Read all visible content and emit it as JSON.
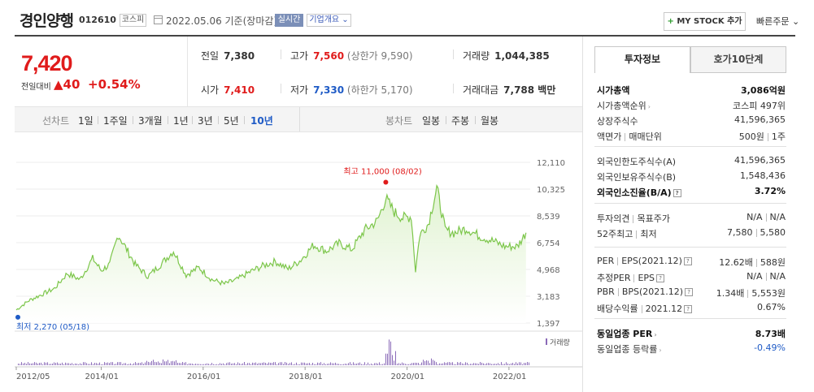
{
  "header": {
    "company_name": "경인양행",
    "code": "012610",
    "market": "코스피",
    "date_text": "2022.05.06  기준(장마감)",
    "realtime_label": "실시간",
    "corp_label": "기업개요 ⌄",
    "mystock_label": "MY STOCK 추가",
    "quick_order": "빠른주문 ⌄"
  },
  "price": {
    "current": "7,420",
    "diff_label": "전일대비",
    "diff": "▲40",
    "pct": "+0.54%"
  },
  "quotes": {
    "prev_close_label": "전일",
    "prev_close": "7,380",
    "high_label": "고가",
    "high": "7,560",
    "upper_limit": "(상한가 9,590)",
    "volume_label": "거래량",
    "volume": "1,044,385",
    "open_label": "시가",
    "open": "7,410",
    "low_label": "저가",
    "low": "7,330",
    "lower_limit": "(하한가 5,170)",
    "amount_label": "거래대금",
    "amount": "7,788 백만"
  },
  "tabs": {
    "line_label": "선차트",
    "periods": [
      "1일",
      "1주일",
      "3개월",
      "1년",
      "3년",
      "5년",
      "10년"
    ],
    "active_period": "10년",
    "candle_label": "봉차트",
    "candles": [
      "일봉",
      "주봉",
      "월봉"
    ]
  },
  "chart_data": {
    "type": "area",
    "y_ticks": [
      "12,110",
      "10,325",
      "8,539",
      "6,754",
      "4,968",
      "3,183",
      "1,397"
    ],
    "ylim": [
      1397,
      12110
    ],
    "x_ticks": [
      "2012/05",
      "2014/01",
      "2016/01",
      "2018/01",
      "2020/01",
      "2022/01"
    ],
    "max_label": "최고 11,000 (08/02)",
    "min_label": "최저 2,270 (05/18)",
    "volume_label": "거래량",
    "line_color": "#7cc64a",
    "fill_color": "#dff2cf",
    "series": [
      {
        "x": "2012/05",
        "y": 2270
      },
      {
        "x": "2012/08",
        "y": 2900
      },
      {
        "x": "2012/11",
        "y": 3300
      },
      {
        "x": "2013/02",
        "y": 3700
      },
      {
        "x": "2013/05",
        "y": 4700
      },
      {
        "x": "2013/08",
        "y": 4300
      },
      {
        "x": "2013/11",
        "y": 5700
      },
      {
        "x": "2014/01",
        "y": 4900
      },
      {
        "x": "2014/03",
        "y": 5300
      },
      {
        "x": "2014/05",
        "y": 7300
      },
      {
        "x": "2014/07",
        "y": 6300
      },
      {
        "x": "2014/09",
        "y": 5300
      },
      {
        "x": "2014/12",
        "y": 4500
      },
      {
        "x": "2015/03",
        "y": 5300
      },
      {
        "x": "2015/06",
        "y": 6200
      },
      {
        "x": "2015/09",
        "y": 4600
      },
      {
        "x": "2015/12",
        "y": 5100
      },
      {
        "x": "2016/03",
        "y": 4300
      },
      {
        "x": "2016/06",
        "y": 4000
      },
      {
        "x": "2016/09",
        "y": 4300
      },
      {
        "x": "2016/12",
        "y": 4800
      },
      {
        "x": "2017/03",
        "y": 5200
      },
      {
        "x": "2017/06",
        "y": 5500
      },
      {
        "x": "2017/09",
        "y": 5000
      },
      {
        "x": "2017/12",
        "y": 5600
      },
      {
        "x": "2018/03",
        "y": 6600
      },
      {
        "x": "2018/06",
        "y": 6200
      },
      {
        "x": "2018/09",
        "y": 6700
      },
      {
        "x": "2018/12",
        "y": 6300
      },
      {
        "x": "2019/03",
        "y": 7600
      },
      {
        "x": "2019/06",
        "y": 8200
      },
      {
        "x": "2019/08",
        "y": 9700
      },
      {
        "x": "2019/10",
        "y": 8800
      },
      {
        "x": "2019/12",
        "y": 8400
      },
      {
        "x": "2020/02",
        "y": 8500
      },
      {
        "x": "2020/03",
        "y": 4900
      },
      {
        "x": "2020/04",
        "y": 7300
      },
      {
        "x": "2020/06",
        "y": 8000
      },
      {
        "x": "2020/08",
        "y": 10400
      },
      {
        "x": "2020/10",
        "y": 7600
      },
      {
        "x": "2020/12",
        "y": 7400
      },
      {
        "x": "2021/03",
        "y": 7700
      },
      {
        "x": "2021/06",
        "y": 7200
      },
      {
        "x": "2021/09",
        "y": 6900
      },
      {
        "x": "2021/12",
        "y": 6500
      },
      {
        "x": "2022/03",
        "y": 6500
      },
      {
        "x": "2022/05",
        "y": 7420
      }
    ]
  },
  "side": {
    "tab_info": "투자정보",
    "tab_quote": "호가10단계",
    "rows1": [
      {
        "l": "시가총액",
        "r": "3,086억원",
        "bold": true
      },
      {
        "l": "시가총액순위",
        "r": "코스피 497위"
      },
      {
        "l": "상장주식수",
        "r": "41,596,365"
      },
      {
        "l": "액면가 | 매매단위",
        "r": "500원 | 1주"
      }
    ],
    "rows2": [
      {
        "l": "외국인한도주식수(A)",
        "r": "41,596,365"
      },
      {
        "l": "외국인보유주식수(B)",
        "r": "1,548,436"
      },
      {
        "l": "외국인소진율(B/A)",
        "r": "3.72%",
        "bold": true
      }
    ],
    "rows3": [
      {
        "l": "투자의견 | 목표주가",
        "r": "N/A | N/A"
      },
      {
        "l": "52주최고 | 최저",
        "r": "7,580 | 5,580"
      }
    ],
    "rows4": [
      {
        "l": "PER | EPS(2021.12)",
        "r": "12.62배 | 588원"
      },
      {
        "l": "추정PER | EPS",
        "r": "N/A | N/A"
      },
      {
        "l": "PBR | BPS(2021.12)",
        "r": "1.34배 | 5,553원"
      },
      {
        "l": "배당수익률 | 2021.12",
        "r": "0.67%"
      }
    ],
    "rows5": [
      {
        "l": "동일업종 PER",
        "r": "8.73배",
        "bold": true
      },
      {
        "l": "동일업종 등락률",
        "r": "-0.49%",
        "neg": true
      }
    ]
  }
}
